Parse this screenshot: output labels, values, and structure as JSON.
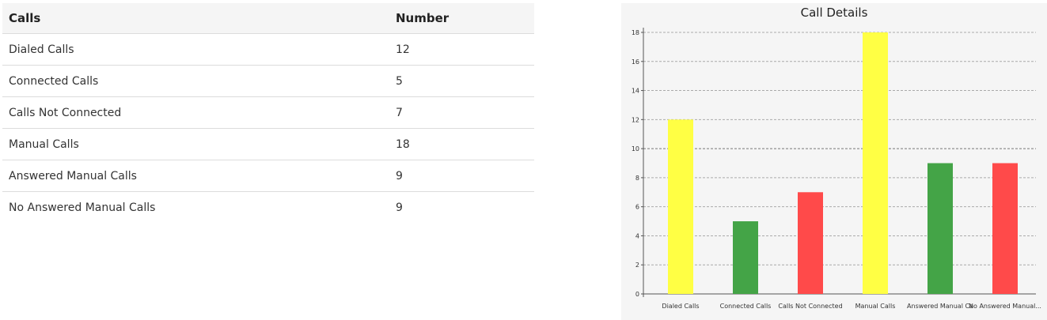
{
  "table": {
    "headers": [
      "Calls",
      "Number"
    ],
    "rows": [
      {
        "label": "Dialed Calls",
        "value": "12"
      },
      {
        "label": "Connected Calls",
        "value": "5"
      },
      {
        "label": "Calls Not Connected",
        "value": "7"
      },
      {
        "label": "Manual Calls",
        "value": "18"
      },
      {
        "label": "Answered Manual Calls",
        "value": "9"
      },
      {
        "label": "No Answered Manual Calls",
        "value": "9"
      }
    ]
  },
  "chart_data": {
    "type": "bar",
    "title": "Call Details",
    "categories": [
      "Dialed Calls",
      "Connected Calls",
      "Calls Not Connected",
      "Manual Calls",
      "Answered Manual Calls",
      "No Answered Manual Calls"
    ],
    "tick_labels": [
      "Dialed Calls",
      "Connected Calls",
      "Calls Not Connected",
      "Manual Calls",
      "Answered Manual Ca",
      "No Answered Manual..."
    ],
    "values": [
      12,
      5,
      7,
      18,
      9,
      9
    ],
    "colors": [
      "#ffff44",
      "#44a447",
      "#ff4a4a",
      "#ffff44",
      "#44a447",
      "#ff4a4a"
    ],
    "ylim": [
      0,
      18
    ],
    "yticks": [
      0,
      2,
      4,
      6,
      8,
      10,
      12,
      14,
      16,
      18
    ],
    "grid": true,
    "xlabel": "",
    "ylabel": ""
  }
}
